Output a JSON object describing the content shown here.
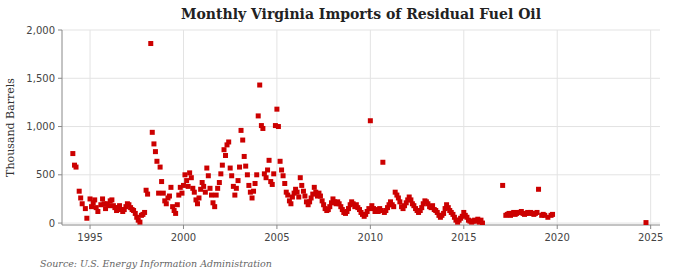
{
  "chart_data": {
    "type": "scatter",
    "title": "Monthly Virginia Imports of Residual Fuel Oil",
    "ylabel": "Thousand Barrels",
    "annotations": [
      "Source: U.S. Energy Information Administration"
    ],
    "color": "#cc0000",
    "marker": "square",
    "grid": true,
    "xlim": [
      1993.5,
      2025.5
    ],
    "ylim": [
      -20,
      2000
    ],
    "xticks": [
      1995,
      2000,
      2005,
      2010,
      2015,
      2020,
      2025
    ],
    "yticks": [
      0,
      500,
      {
        "value": 1000,
        "label": "1,000"
      },
      {
        "value": 1500,
        "label": "1,500"
      },
      {
        "value": 2000,
        "label": "2,000"
      }
    ],
    "x": [
      1994.08,
      1994.17,
      1994.25,
      1994.42,
      1994.5,
      1994.58,
      1994.75,
      1994.83,
      1995.0,
      1995.08,
      1995.17,
      1995.25,
      1995.33,
      1995.42,
      1995.58,
      1995.67,
      1995.75,
      1995.83,
      1995.92,
      1996.0,
      1996.08,
      1996.17,
      1996.25,
      1996.33,
      1996.42,
      1996.5,
      1996.58,
      1996.67,
      1996.75,
      1996.83,
      1996.92,
      1997.0,
      1997.08,
      1997.17,
      1997.25,
      1997.33,
      1997.42,
      1997.5,
      1997.58,
      1997.67,
      1997.75,
      1997.83,
      1997.92,
      1998.0,
      1998.08,
      1998.25,
      1998.33,
      1998.42,
      1998.5,
      1998.58,
      1998.67,
      1998.75,
      1998.83,
      1998.92,
      1999.0,
      1999.08,
      1999.17,
      1999.25,
      1999.33,
      1999.42,
      1999.5,
      1999.58,
      1999.67,
      1999.75,
      1999.83,
      1999.92,
      2000.0,
      2000.08,
      2000.17,
      2000.25,
      2000.33,
      2000.42,
      2000.5,
      2000.58,
      2000.67,
      2000.75,
      2000.83,
      2000.92,
      2001.0,
      2001.08,
      2001.17,
      2001.25,
      2001.33,
      2001.42,
      2001.5,
      2001.58,
      2001.67,
      2001.75,
      2001.83,
      2001.92,
      2002.0,
      2002.08,
      2002.17,
      2002.25,
      2002.33,
      2002.42,
      2002.5,
      2002.58,
      2002.67,
      2002.75,
      2002.83,
      2002.92,
      2003.0,
      2003.08,
      2003.17,
      2003.25,
      2003.33,
      2003.42,
      2003.5,
      2003.58,
      2003.67,
      2003.75,
      2003.83,
      2003.92,
      2004.0,
      2004.08,
      2004.17,
      2004.25,
      2004.33,
      2004.42,
      2004.5,
      2004.58,
      2004.67,
      2004.75,
      2004.83,
      2004.92,
      2005.0,
      2005.08,
      2005.17,
      2005.25,
      2005.33,
      2005.42,
      2005.5,
      2005.58,
      2005.67,
      2005.75,
      2005.83,
      2005.92,
      2006.0,
      2006.08,
      2006.17,
      2006.25,
      2006.33,
      2006.42,
      2006.5,
      2006.58,
      2006.67,
      2006.75,
      2006.83,
      2006.92,
      2007.0,
      2007.08,
      2007.17,
      2007.25,
      2007.33,
      2007.42,
      2007.5,
      2007.58,
      2007.67,
      2007.75,
      2007.83,
      2007.92,
      2008.0,
      2008.08,
      2008.17,
      2008.25,
      2008.33,
      2008.42,
      2008.5,
      2008.58,
      2008.67,
      2008.75,
      2008.83,
      2008.92,
      2009.0,
      2009.08,
      2009.17,
      2009.25,
      2009.33,
      2009.42,
      2009.5,
      2009.58,
      2009.67,
      2009.75,
      2009.83,
      2009.92,
      2010.0,
      2010.08,
      2010.17,
      2010.25,
      2010.33,
      2010.42,
      2010.5,
      2010.58,
      2010.67,
      2010.75,
      2010.83,
      2010.92,
      2011.0,
      2011.08,
      2011.17,
      2011.25,
      2011.33,
      2011.42,
      2011.5,
      2011.58,
      2011.67,
      2011.75,
      2011.83,
      2011.92,
      2012.0,
      2012.08,
      2012.17,
      2012.25,
      2012.33,
      2012.42,
      2012.5,
      2012.58,
      2012.67,
      2012.75,
      2012.83,
      2012.92,
      2013.0,
      2013.08,
      2013.17,
      2013.25,
      2013.33,
      2013.42,
      2013.5,
      2013.58,
      2013.67,
      2013.75,
      2013.83,
      2013.92,
      2014.0,
      2014.08,
      2014.17,
      2014.25,
      2014.33,
      2014.42,
      2014.5,
      2014.58,
      2014.67,
      2014.75,
      2014.83,
      2014.92,
      2015.0,
      2015.08,
      2015.17,
      2015.25,
      2015.33,
      2015.42,
      2015.5,
      2015.58,
      2015.67,
      2015.75,
      2015.83,
      2015.92,
      2016.0,
      2017.08,
      2017.25,
      2017.33,
      2017.42,
      2017.5,
      2017.58,
      2017.67,
      2017.75,
      2017.83,
      2017.92,
      2018.0,
      2018.08,
      2018.17,
      2018.25,
      2018.33,
      2018.42,
      2018.5,
      2018.58,
      2018.67,
      2018.75,
      2018.83,
      2018.92,
      2019.0,
      2019.17,
      2019.25,
      2019.33,
      2019.5,
      2019.67,
      2019.75,
      2024.75
    ],
    "values": [
      720,
      600,
      580,
      330,
      260,
      200,
      150,
      50,
      250,
      170,
      210,
      240,
      160,
      120,
      190,
      250,
      200,
      150,
      200,
      180,
      230,
      240,
      180,
      160,
      130,
      160,
      180,
      140,
      120,
      140,
      170,
      200,
      190,
      160,
      140,
      130,
      100,
      60,
      30,
      10,
      80,
      90,
      110,
      340,
      300,
      1860,
      940,
      820,
      740,
      640,
      310,
      580,
      430,
      310,
      230,
      200,
      260,
      280,
      370,
      170,
      130,
      100,
      190,
      290,
      370,
      310,
      390,
      500,
      440,
      380,
      520,
      470,
      360,
      320,
      240,
      200,
      260,
      350,
      420,
      380,
      320,
      570,
      490,
      360,
      290,
      210,
      170,
      290,
      360,
      420,
      510,
      600,
      760,
      700,
      810,
      840,
      570,
      490,
      380,
      290,
      360,
      440,
      580,
      960,
      860,
      690,
      590,
      500,
      390,
      320,
      260,
      330,
      410,
      500,
      1110,
      1430,
      1010,
      980,
      510,
      470,
      550,
      650,
      430,
      400,
      510,
      1010,
      1180,
      1000,
      640,
      550,
      490,
      410,
      320,
      290,
      230,
      200,
      270,
      310,
      350,
      320,
      270,
      470,
      390,
      330,
      280,
      220,
      190,
      220,
      260,
      300,
      370,
      320,
      280,
      310,
      280,
      230,
      190,
      150,
      130,
      140,
      170,
      210,
      250,
      220,
      200,
      220,
      200,
      170,
      140,
      110,
      100,
      120,
      150,
      190,
      220,
      200,
      170,
      190,
      160,
      140,
      110,
      90,
      70,
      90,
      120,
      150,
      1060,
      180,
      150,
      120,
      140,
      120,
      150,
      130,
      630,
      110,
      130,
      160,
      190,
      220,
      190,
      170,
      320,
      290,
      260,
      220,
      170,
      150,
      180,
      210,
      240,
      270,
      240,
      200,
      180,
      150,
      130,
      110,
      130,
      160,
      200,
      230,
      220,
      200,
      170,
      160,
      180,
      140,
      130,
      110,
      80,
      60,
      80,
      100,
      150,
      190,
      160,
      130,
      110,
      90,
      60,
      30,
      10,
      30,
      50,
      70,
      110,
      80,
      60,
      30,
      20,
      10,
      20,
      30,
      20,
      40,
      10,
      30,
      0,
      390,
      80,
      90,
      100,
      80,
      100,
      110,
      90,
      100,
      110,
      110,
      120,
      100,
      90,
      100,
      110,
      100,
      110,
      100,
      90,
      100,
      110,
      350,
      80,
      90,
      80,
      60,
      80,
      90,
      5
    ]
  }
}
